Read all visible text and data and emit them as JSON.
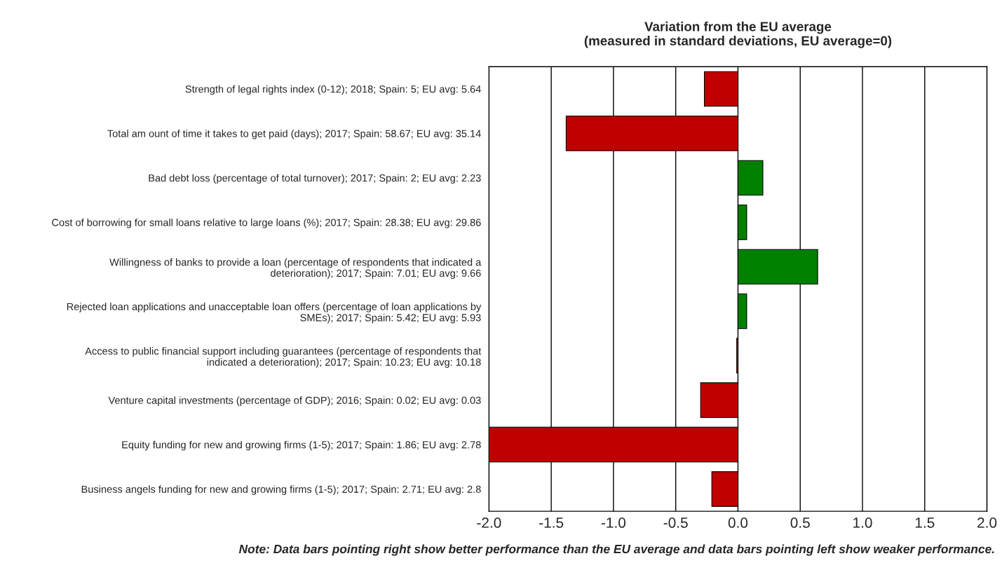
{
  "chart_data": {
    "type": "bar",
    "orientation": "horizontal",
    "title": "Variation from the EU average\n(measured in standard deviations, EU average=0)",
    "categories": [
      "Strength of legal rights index (0-12); 2018; Spain: 5; EU avg: 5.64",
      "Total am ount of time it takes to get paid (days); 2017; Spain: 58.67; EU avg: 35.14",
      "Bad debt loss (percentage of total turnover); 2017; Spain: 2; EU avg: 2.23",
      "Cost of borrowing for small loans relative to large loans (%); 2017; Spain: 28.38; EU avg: 29.86",
      "Willingness of banks to provide a loan (percentage of respondents that indicated a\ndeterioration); 2017; Spain: 7.01; EU avg: 9.66",
      "Rejected loan applications and unacceptable loan offers (percentage of loan applications by\nSMEs); 2017; Spain: 5.42; EU avg: 5.93",
      "Access to public financial support including guarantees (percentage of respondents that\nindicated a deterioration); 2017; Spain: 10.23; EU avg: 10.18",
      "Venture capital investments (percentage of GDP); 2016; Spain: 0.02; EU avg: 0.03",
      "Equity funding for new and growing firms (1-5); 2017; Spain: 1.86; EU avg: 2.78",
      "Business angels funding for new and growing firms (1-5); 2017; Spain: 2.71; EU avg: 2.8"
    ],
    "values": [
      -0.27,
      -1.38,
      0.2,
      0.07,
      0.64,
      0.07,
      -0.01,
      -0.3,
      -2.0,
      -0.21
    ],
    "colors": [
      "#c00000",
      "#c00000",
      "#008000",
      "#008000",
      "#008000",
      "#008000",
      "#c00000",
      "#c00000",
      "#c00000",
      "#c00000"
    ],
    "xlim": [
      -2.0,
      2.0
    ],
    "xticks": [
      {
        "value": -2.0,
        "label": "-2.0"
      },
      {
        "value": -1.5,
        "label": "-1.5"
      },
      {
        "value": -1.0,
        "label": "-1.0"
      },
      {
        "value": -0.5,
        "label": "-0.5"
      },
      {
        "value": 0.0,
        "label": "0.0"
      },
      {
        "value": 0.5,
        "label": "0.5"
      },
      {
        "value": 1.0,
        "label": "1.0"
      },
      {
        "value": 1.5,
        "label": "1.5"
      },
      {
        "value": 2.0,
        "label": "2.0"
      }
    ],
    "grid": "x",
    "annotations": [
      "Note: Data bars pointing right show better performance than the EU average and data bars pointing left show weaker performance."
    ]
  }
}
